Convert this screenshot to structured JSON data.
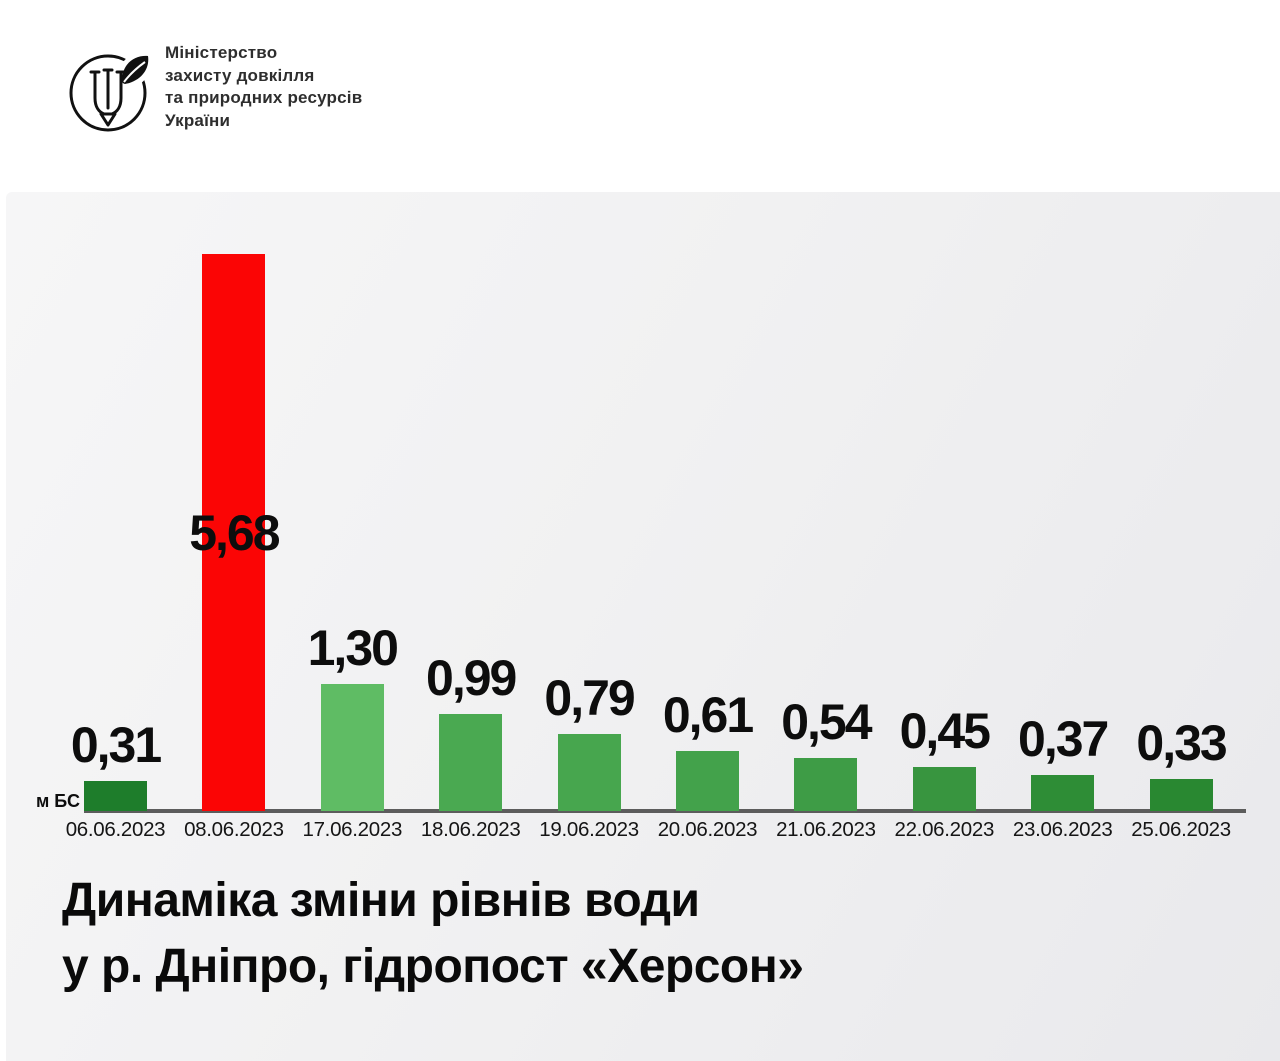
{
  "header": {
    "ministry_name_lines": {
      "0": "Міністерство",
      "1": "захисту довкілля",
      "2": "та природних ресурсів",
      "3": "України"
    }
  },
  "chart_data": {
    "type": "bar",
    "title": "Динаміка зміни рівнів води у р. Дніпро, гідропост «Херсон»",
    "title_lines": {
      "line1": "Динаміка зміни рівнів води",
      "line2": "у р. Дніпро, гідропост «Херсон»"
    },
    "ylabel": "м БС",
    "xlabel": "",
    "categories": [
      "06.06.2023",
      "08.06.2023",
      "17.06.2023",
      "18.06.2023",
      "19.06.2023",
      "20.06.2023",
      "21.06.2023",
      "22.06.2023",
      "23.06.2023",
      "25.06.2023"
    ],
    "values": [
      0.31,
      5.68,
      1.3,
      0.99,
      0.79,
      0.61,
      0.54,
      0.45,
      0.37,
      0.33
    ],
    "value_labels": [
      "0,31",
      "5,68",
      "1,30",
      "0,99",
      "0,79",
      "0,61",
      "0,54",
      "0,45",
      "0,37",
      "0,33"
    ],
    "bar_colors": [
      "#1e7d2b",
      "#fb0505",
      "#5fbc64",
      "#4aa951",
      "#47a64e",
      "#43a24b",
      "#3e9c46",
      "#38953f",
      "#2e8d36",
      "#298831"
    ],
    "highlight_index": 1,
    "highlight_color": "#fb0505",
    "ylim": [
      0,
      6
    ],
    "grid": false,
    "legend": false,
    "axis_color": "#5c5c5c",
    "value_label_color": "#0d0d0d",
    "panel_background": "#f1f1f2"
  }
}
